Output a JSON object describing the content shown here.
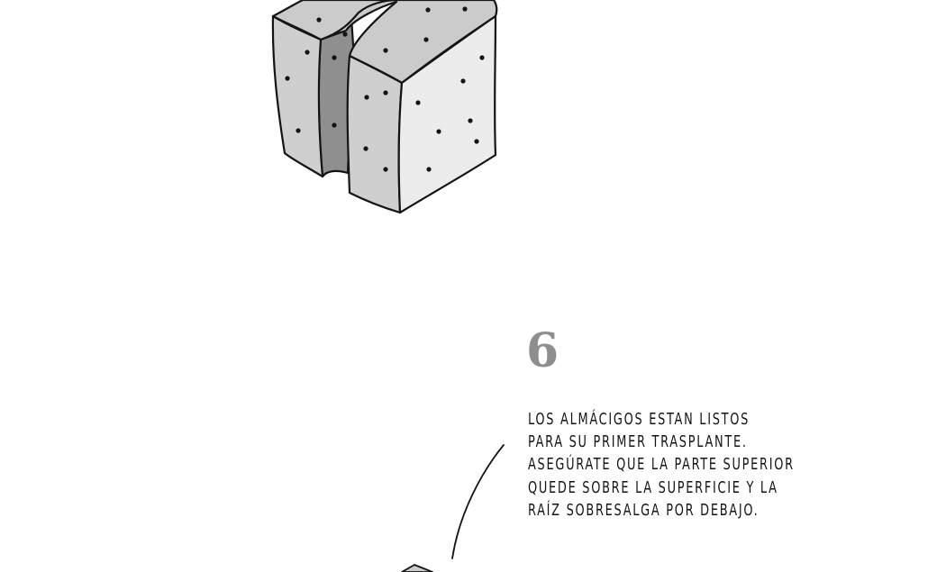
{
  "step": {
    "number": "6",
    "text": "LOS ALMÁCIGOS ESTAN LISTOS\nPARA SU PRIMER TRASPLANTE.\nASEGÚRATE QUE LA PARTE SUPERIOR\nQUEDE SOBRE LA SUPERFICIE Y LA\nRAÍZ SOBRESALGA POR DEBAJO."
  },
  "colors": {
    "block_front": "#cfcfcf",
    "block_right": "#ececec",
    "block_top": "#cbcbcb",
    "block_gap": "#8f8f8f",
    "step_number": "#8e8e8e",
    "ink": "#141414"
  }
}
